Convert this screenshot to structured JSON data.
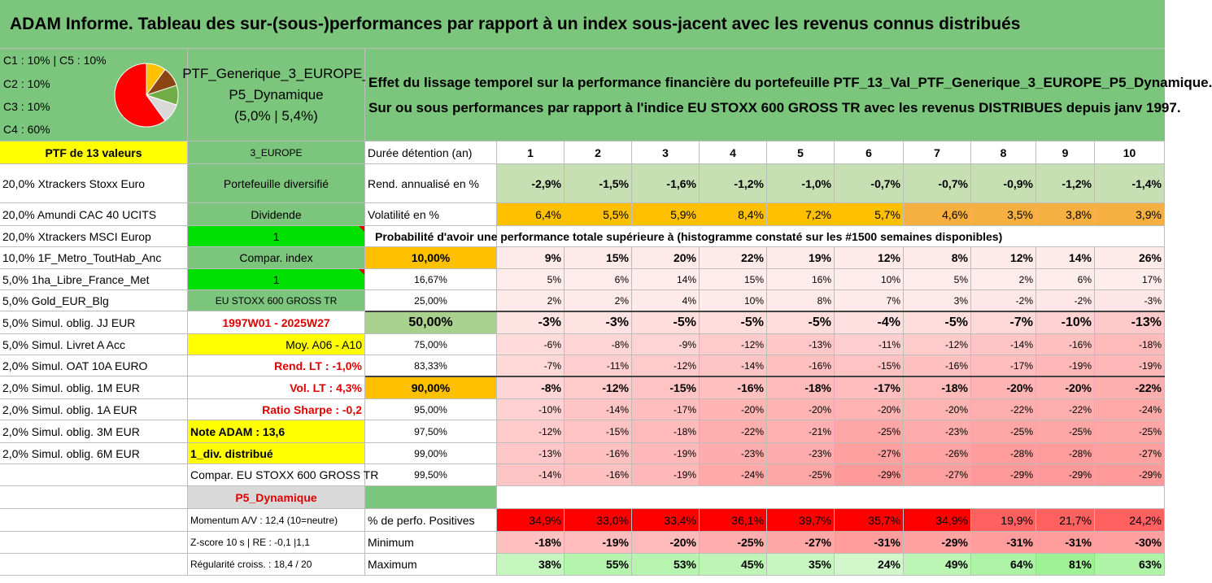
{
  "title": "ADAM Informe. Tableau des sur-(sous-)performances par rapport à un index sous-jacent avec les revenus connus distribués",
  "allocation": {
    "lines": [
      "C1 : 10% | C5 : 10%",
      "C2 : 10%",
      "C3 : 10%",
      "C4 : 60%"
    ],
    "pie": [
      {
        "name": "C1",
        "value": 10,
        "color": "#8b4513"
      },
      {
        "name": "C2",
        "value": 10,
        "color": "#70ad47"
      },
      {
        "name": "C3",
        "value": 10,
        "color": "#d9d9d9"
      },
      {
        "name": "C4",
        "value": 60,
        "color": "#ff0000"
      },
      {
        "name": "C5",
        "value": 10,
        "color": "#ffc000"
      }
    ]
  },
  "portfolio": {
    "name_line1": "PTF_Generique_3_EUROPE_",
    "name_line2": "P5_Dynamique",
    "name_line3": "(5,0% | 5,4%)"
  },
  "description": {
    "line1": "Effet du lissage temporel sur la performance financière du portefeuille PTF_13_Val_PTF_Generique_3_EUROPE_P5_Dynamique.",
    "line2": "Sur ou sous performances par rapport à l'indice EU STOXX 600 GROSS TR avec les revenus DISTRIBUES depuis janv 1997."
  },
  "col_a": [
    "PTF de 13 valeurs",
    "20,0% Xtrackers Stoxx Euro",
    "20,0% Amundi CAC 40 UCITS",
    "20,0% Xtrackers MSCI Europ",
    "10,0% 1F_Metro_ToutHab_Anc",
    "5,0% 1ha_Libre_France_Met",
    "5,0% Gold_EUR_Blg",
    "5,0% Simul. oblig. JJ EUR",
    "5,0% Simul. Livret A Acc",
    "2,0% Simul. OAT 10A EURO",
    "2,0% Simul. oblig. 1M EUR",
    "2,0% Simul. oblig. 1A EUR",
    "2,0% Simul. oblig. 3M EUR",
    "2,0% Simul. oblig. 6M EUR",
    "",
    "",
    "",
    "",
    ""
  ],
  "col_b": [
    "3_EUROPE",
    "Portefeuille diversifié",
    "Dividende",
    "1",
    "Compar. index",
    "1",
    "EU STOXX 600 GROSS TR",
    "1997W01 - 2025W27",
    "Moy. A06 - A10",
    "Rend. LT : -1,0%",
    "Vol. LT : 4,3%",
    "Ratio Sharpe : -0,2",
    "Note ADAM : 13,6",
    "1_div. distribué",
    "Compar. EU STOXX 600 GROSS TR",
    "P5_Dynamique",
    "Momentum A/V : 12,4 (10=neutre)",
    "Z-score 10 s | RE : -0,1 |1,1",
    "Régularité croiss. : 18,4 / 20"
  ],
  "header_row": {
    "label": "Durée détention (an)",
    "years": [
      "1",
      "2",
      "3",
      "4",
      "5",
      "6",
      "7",
      "8",
      "9",
      "10"
    ]
  },
  "rend_row": {
    "label": "Rend. annualisé en %",
    "values": [
      "-2,9%",
      "-1,5%",
      "-1,6%",
      "-1,2%",
      "-1,0%",
      "-0,7%",
      "-0,7%",
      "-0,9%",
      "-1,2%",
      "-1,4%"
    ]
  },
  "vol_row": {
    "label": "Volatilité en %",
    "values": [
      "6,4%",
      "5,5%",
      "5,9%",
      "8,4%",
      "7,2%",
      "5,7%",
      "4,6%",
      "3,5%",
      "3,8%",
      "3,9%"
    ]
  },
  "prob_title": "Probabilité d'avoir une performance totale supérieure à (histogramme constaté sur les #1500 semaines disponibles)",
  "prob_rows": [
    {
      "label": "10,00%",
      "values": [
        "9%",
        "15%",
        "20%",
        "22%",
        "19%",
        "12%",
        "8%",
        "12%",
        "14%",
        "26%"
      ],
      "heat": [
        0.05,
        0.05,
        0.05,
        0.05,
        0.05,
        0.05,
        0.05,
        0.05,
        0.05,
        0.05
      ]
    },
    {
      "label": "16,67%",
      "values": [
        "5%",
        "6%",
        "14%",
        "15%",
        "16%",
        "10%",
        "5%",
        "2%",
        "6%",
        "17%"
      ],
      "heat": [
        0.04,
        0.04,
        0.04,
        0.04,
        0.04,
        0.04,
        0.04,
        0.04,
        0.04,
        0.04
      ]
    },
    {
      "label": "25,00%",
      "values": [
        "2%",
        "2%",
        "4%",
        "10%",
        "8%",
        "7%",
        "3%",
        "-2%",
        "-2%",
        "-3%"
      ],
      "heat": [
        0.05,
        0.05,
        0.05,
        0.05,
        0.05,
        0.05,
        0.05,
        0.07,
        0.07,
        0.08
      ]
    },
    {
      "label": "50,00%",
      "values": [
        "-3%",
        "-3%",
        "-5%",
        "-5%",
        "-5%",
        "-4%",
        "-5%",
        "-7%",
        "-10%",
        "-13%"
      ],
      "heat": [
        0.1,
        0.1,
        0.14,
        0.14,
        0.14,
        0.12,
        0.14,
        0.17,
        0.22,
        0.27
      ]
    },
    {
      "label": "75,00%",
      "values": [
        "-6%",
        "-8%",
        "-9%",
        "-12%",
        "-13%",
        "-11%",
        "-12%",
        "-14%",
        "-16%",
        "-18%"
      ],
      "heat": [
        0.15,
        0.19,
        0.2,
        0.26,
        0.28,
        0.24,
        0.26,
        0.3,
        0.33,
        0.37
      ]
    },
    {
      "label": "83,33%",
      "values": [
        "-7%",
        "-11%",
        "-12%",
        "-14%",
        "-16%",
        "-15%",
        "-16%",
        "-17%",
        "-19%",
        "-19%"
      ],
      "heat": [
        0.17,
        0.24,
        0.26,
        0.3,
        0.33,
        0.31,
        0.33,
        0.35,
        0.38,
        0.38
      ]
    },
    {
      "label": "90,00%",
      "values": [
        "-8%",
        "-12%",
        "-15%",
        "-16%",
        "-18%",
        "-17%",
        "-18%",
        "-20%",
        "-20%",
        "-22%"
      ],
      "heat": [
        0.19,
        0.26,
        0.31,
        0.33,
        0.37,
        0.35,
        0.37,
        0.41,
        0.41,
        0.45
      ]
    },
    {
      "label": "95,00%",
      "values": [
        "-10%",
        "-14%",
        "-17%",
        "-20%",
        "-20%",
        "-20%",
        "-20%",
        "-22%",
        "-22%",
        "-24%"
      ],
      "heat": [
        0.22,
        0.3,
        0.35,
        0.41,
        0.41,
        0.41,
        0.41,
        0.45,
        0.45,
        0.48
      ]
    },
    {
      "label": "97,50%",
      "values": [
        "-12%",
        "-15%",
        "-18%",
        "-22%",
        "-21%",
        "-25%",
        "-23%",
        "-25%",
        "-25%",
        "-25%"
      ],
      "heat": [
        0.26,
        0.31,
        0.37,
        0.45,
        0.43,
        0.5,
        0.46,
        0.5,
        0.5,
        0.5
      ]
    },
    {
      "label": "99,00%",
      "values": [
        "-13%",
        "-16%",
        "-19%",
        "-23%",
        "-23%",
        "-27%",
        "-26%",
        "-28%",
        "-28%",
        "-27%"
      ],
      "heat": [
        0.28,
        0.33,
        0.38,
        0.46,
        0.46,
        0.54,
        0.52,
        0.56,
        0.56,
        0.54
      ]
    },
    {
      "label": "99,50%",
      "values": [
        "-14%",
        "-16%",
        "-19%",
        "-24%",
        "-25%",
        "-29%",
        "-27%",
        "-29%",
        "-29%",
        "-29%"
      ],
      "heat": [
        0.3,
        0.33,
        0.38,
        0.48,
        0.5,
        0.58,
        0.54,
        0.58,
        0.58,
        0.58
      ]
    }
  ],
  "positive_row": {
    "label": "% de perfo. Positives",
    "values": [
      "34,9%",
      "33,0%",
      "33,4%",
      "36,1%",
      "39,7%",
      "35,7%",
      "34,9%",
      "19,9%",
      "21,7%",
      "24,2%"
    ]
  },
  "min_row": {
    "label": "Minimum",
    "values": [
      "-18%",
      "-19%",
      "-20%",
      "-25%",
      "-27%",
      "-31%",
      "-29%",
      "-31%",
      "-31%",
      "-30%"
    ]
  },
  "max_row": {
    "label": "Maximum",
    "values": [
      "38%",
      "55%",
      "53%",
      "45%",
      "35%",
      "24%",
      "49%",
      "64%",
      "81%",
      "63%"
    ]
  }
}
